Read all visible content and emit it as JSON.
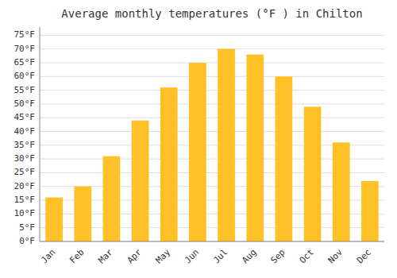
{
  "chart_data": {
    "type": "bar",
    "title": "Average monthly temperatures (°F ) in Chilton",
    "categories": [
      "Jan",
      "Feb",
      "Mar",
      "Apr",
      "May",
      "Jun",
      "Jul",
      "Aug",
      "Sep",
      "Oct",
      "Nov",
      "Dec"
    ],
    "values": [
      16,
      20,
      31,
      44,
      56,
      65,
      70,
      68,
      60,
      49,
      36,
      22
    ],
    "color": "#FFC125",
    "ylim": [
      0,
      78
    ],
    "yticks": [
      {
        "value": 0,
        "label": "0°F"
      },
      {
        "value": 5,
        "label": "5°F"
      },
      {
        "value": 10,
        "label": "10°F"
      },
      {
        "value": 15,
        "label": "15°F"
      },
      {
        "value": 20,
        "label": "20°F"
      },
      {
        "value": 25,
        "label": "25°F"
      },
      {
        "value": 30,
        "label": "30°F"
      },
      {
        "value": 35,
        "label": "35°F"
      },
      {
        "value": 40,
        "label": "40°F"
      },
      {
        "value": 45,
        "label": "45°F"
      },
      {
        "value": 50,
        "label": "50°F"
      },
      {
        "value": 55,
        "label": "55°F"
      },
      {
        "value": 60,
        "label": "60°F"
      },
      {
        "value": 65,
        "label": "65°F"
      },
      {
        "value": 70,
        "label": "70°F"
      },
      {
        "value": 75,
        "label": "75°F"
      }
    ],
    "grid": true
  }
}
